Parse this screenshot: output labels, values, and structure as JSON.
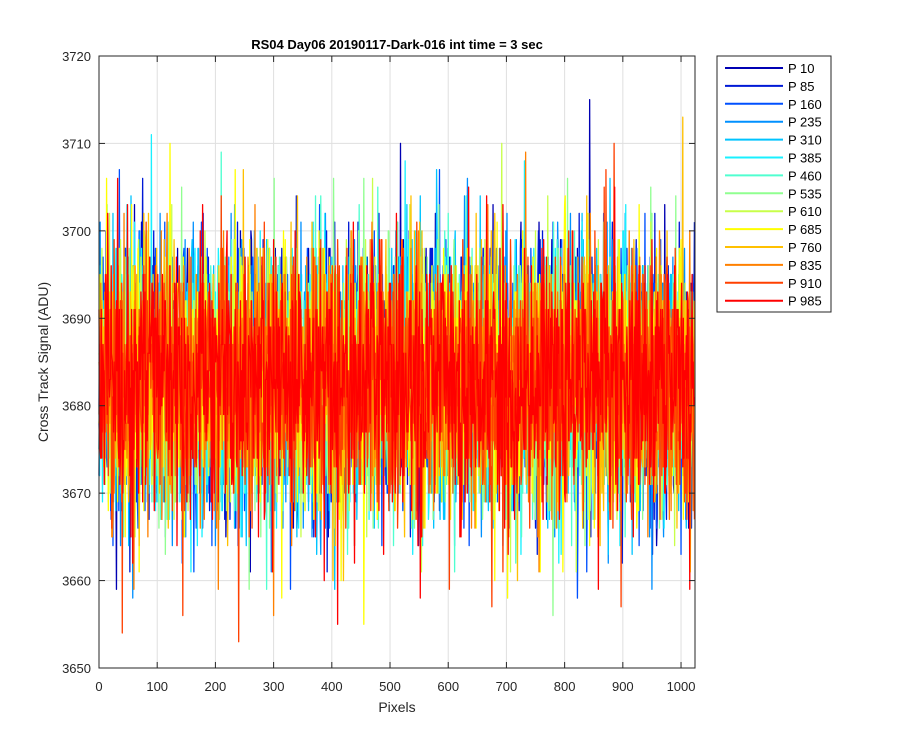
{
  "chart_data": {
    "type": "line",
    "title": "RS04 Day06 20190117-Dark-016 int time = 3 sec",
    "xlabel": "Pixels",
    "ylabel": "Cross Track Signal (ADU)",
    "xlim": [
      0,
      1024
    ],
    "ylim": [
      3650,
      3720
    ],
    "xticks": [
      0,
      100,
      200,
      300,
      400,
      500,
      600,
      700,
      800,
      900,
      1000
    ],
    "yticks": [
      3650,
      3660,
      3670,
      3680,
      3690,
      3700,
      3710,
      3720
    ],
    "grid": true,
    "legend_position": "outside-right",
    "noise": {
      "mean": 3683,
      "sd": 7.5,
      "n_points": 1024
    },
    "series": [
      {
        "name": "P 10",
        "color": "#0000b3",
        "spikes": [
          [
            518,
            3710
          ],
          [
            843,
            3715
          ],
          [
            30,
            3659
          ]
        ]
      },
      {
        "name": "P 85",
        "color": "#0019d6",
        "spikes": [
          [
            75,
            3706
          ],
          [
            410,
            3673
          ]
        ]
      },
      {
        "name": "P 160",
        "color": "#0050ff",
        "spikes": [
          [
            35,
            3707
          ],
          [
            822,
            3658
          ]
        ]
      },
      {
        "name": "P 235",
        "color": "#0090ff",
        "spikes": [
          [
            296,
            3661
          ],
          [
            950,
            3659
          ]
        ]
      },
      {
        "name": "P 310",
        "color": "#00c4ff",
        "spikes": [
          [
            580,
            3707
          ],
          [
            830,
            3702
          ]
        ]
      },
      {
        "name": "P 385",
        "color": "#19f0ff",
        "spikes": [
          [
            90,
            3711
          ],
          [
            388,
            3702
          ]
        ]
      },
      {
        "name": "P 460",
        "color": "#50ffd0",
        "spikes": [
          [
            210,
            3709
          ],
          [
            600,
            3702
          ]
        ]
      },
      {
        "name": "P 535",
        "color": "#90ff90",
        "spikes": [
          [
            780,
            3656
          ],
          [
            455,
            3706
          ]
        ]
      },
      {
        "name": "P 610",
        "color": "#c8ff4a",
        "spikes": [
          [
            470,
            3706
          ],
          [
            125,
            3703
          ]
        ]
      },
      {
        "name": "P 685",
        "color": "#ffff00",
        "spikes": [
          [
            122,
            3710
          ],
          [
            455,
            3655
          ]
        ]
      },
      {
        "name": "P 760",
        "color": "#ffc000",
        "spikes": [
          [
            1003,
            3713
          ],
          [
            680,
            3702
          ]
        ]
      },
      {
        "name": "P 835",
        "color": "#ff8000",
        "spikes": [
          [
            60,
            3659
          ],
          [
            300,
            3656
          ]
        ]
      },
      {
        "name": "P 910",
        "color": "#ff4000",
        "spikes": [
          [
            885,
            3710
          ],
          [
            240,
            3653
          ],
          [
            675,
            3657
          ]
        ]
      },
      {
        "name": "P 985",
        "color": "#ff0000",
        "spikes": [
          [
            32,
            3706
          ],
          [
            410,
            3655
          ],
          [
            1015,
            3659
          ]
        ]
      }
    ]
  }
}
